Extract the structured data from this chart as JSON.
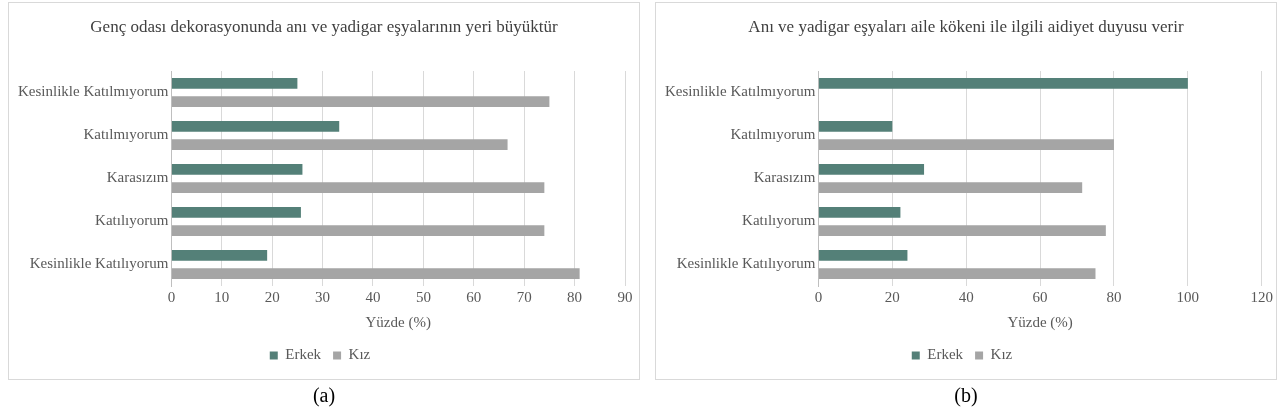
{
  "chart_data": [
    {
      "type": "bar",
      "orientation": "horizontal",
      "title": "Genç odası dekorasyonunda anı ve  yadigar eşyalarının yeri büyüktür",
      "xlabel": "Yüzde (%)",
      "categories": [
        "Kesinlikle Katılmıyorum",
        "Katılmıyorum",
        "Karasızım",
        "Katılıyorum",
        "Kesinlikle Katılıyorum"
      ],
      "series": [
        {
          "name": "Erkek",
          "color": "#548078",
          "values": [
            25,
            33.3,
            26,
            25.7,
            19
          ]
        },
        {
          "name": "Kız",
          "color": "#a5a5a5",
          "values": [
            75,
            66.7,
            74,
            74,
            81
          ]
        }
      ],
      "xlim": [
        0,
        90
      ],
      "xticks": [
        0,
        10,
        20,
        30,
        40,
        50,
        60,
        70,
        80,
        90
      ],
      "grid": "x",
      "legend": "bottom",
      "annotations": [
        "(a)"
      ]
    },
    {
      "type": "bar",
      "orientation": "horizontal",
      "title": "Anı ve yadigar eşyaları aile kökeni ile ilgili  aidiyet duyusu verir",
      "xlabel": "Yüzde (%)",
      "categories": [
        "Kesinlikle Katılmıyorum",
        "Katılmıyorum",
        "Karasızım",
        "Katılıyorum",
        "Kesinlikle Katılıyorum"
      ],
      "series": [
        {
          "name": "Erkek",
          "color": "#548078",
          "values": [
            100,
            20,
            28.6,
            22.2,
            24.1
          ]
        },
        {
          "name": "Kız",
          "color": "#a5a5a5",
          "values": [
            0,
            80,
            71.4,
            77.8,
            75
          ]
        }
      ],
      "xlim": [
        0,
        120
      ],
      "xticks": [
        0,
        20,
        40,
        60,
        80,
        100,
        120
      ],
      "grid": "x",
      "legend": "bottom",
      "annotations": [
        "(b)"
      ]
    }
  ]
}
